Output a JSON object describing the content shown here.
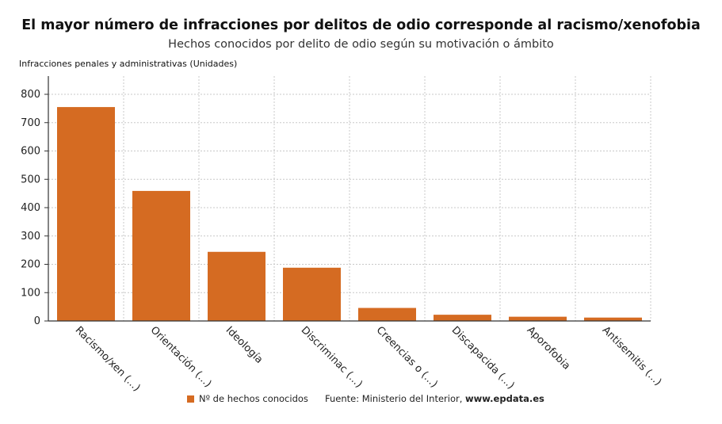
{
  "header": {
    "title": "El mayor número de infracciones por delitos de odio corresponde al racismo/xenofobia",
    "subtitle": "Hechos conocidos por delito de odio según su motivación o ámbito"
  },
  "footer": {
    "legend_label": "Nº de hechos conocidos",
    "source_prefix": "Fuente: Ministerio del Interior, ",
    "source_site": "www.epdata.es"
  },
  "colors": {
    "bar": "#d56b22",
    "grid": "#c8c8c8",
    "axis": "#333333"
  },
  "chart_data": {
    "type": "bar",
    "ylabel": "Infracciones penales y administrativas (Unidades)",
    "categories": [
      "Racismo/xen (...)",
      "Orientación (...)",
      "Ideología",
      "Discriminac (...)",
      "Creencias o (...)",
      "Discapacida (...)",
      "Aporofobia",
      "Antisemitis (...)"
    ],
    "series": [
      {
        "name": "Nº de hechos conocidos",
        "values": [
          755,
          459,
          244,
          188,
          46,
          22,
          15,
          12
        ]
      }
    ],
    "ylim": [
      0,
      800
    ],
    "yticks": [
      0,
      100,
      200,
      300,
      400,
      500,
      600,
      700,
      800
    ],
    "grid": true,
    "legend_position": "bottom"
  }
}
